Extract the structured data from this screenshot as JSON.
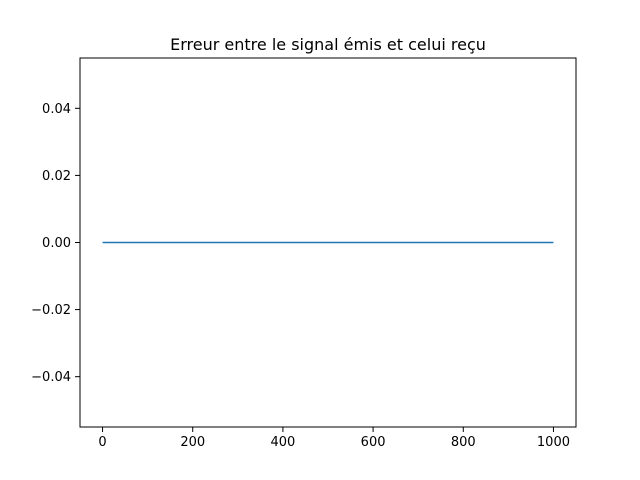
{
  "chart_data": {
    "type": "line",
    "title": "Erreur entre le signal émis et celui reçu",
    "xlabel": "",
    "ylabel": "",
    "xlim": [
      -50,
      1050
    ],
    "ylim": [
      -0.055,
      0.055
    ],
    "xticks": [
      0,
      200,
      400,
      600,
      800,
      1000
    ],
    "xtick_labels": [
      "0",
      "200",
      "400",
      "600",
      "800",
      "1000"
    ],
    "yticks": [
      -0.04,
      -0.02,
      0.0,
      0.02,
      0.04
    ],
    "ytick_labels": [
      "−0.04",
      "−0.02",
      "0.00",
      "0.02",
      "0.04"
    ],
    "grid": false,
    "series": [
      {
        "color": "#1f77b4",
        "x": [
          0,
          1000
        ],
        "y": [
          0,
          0
        ]
      }
    ]
  }
}
